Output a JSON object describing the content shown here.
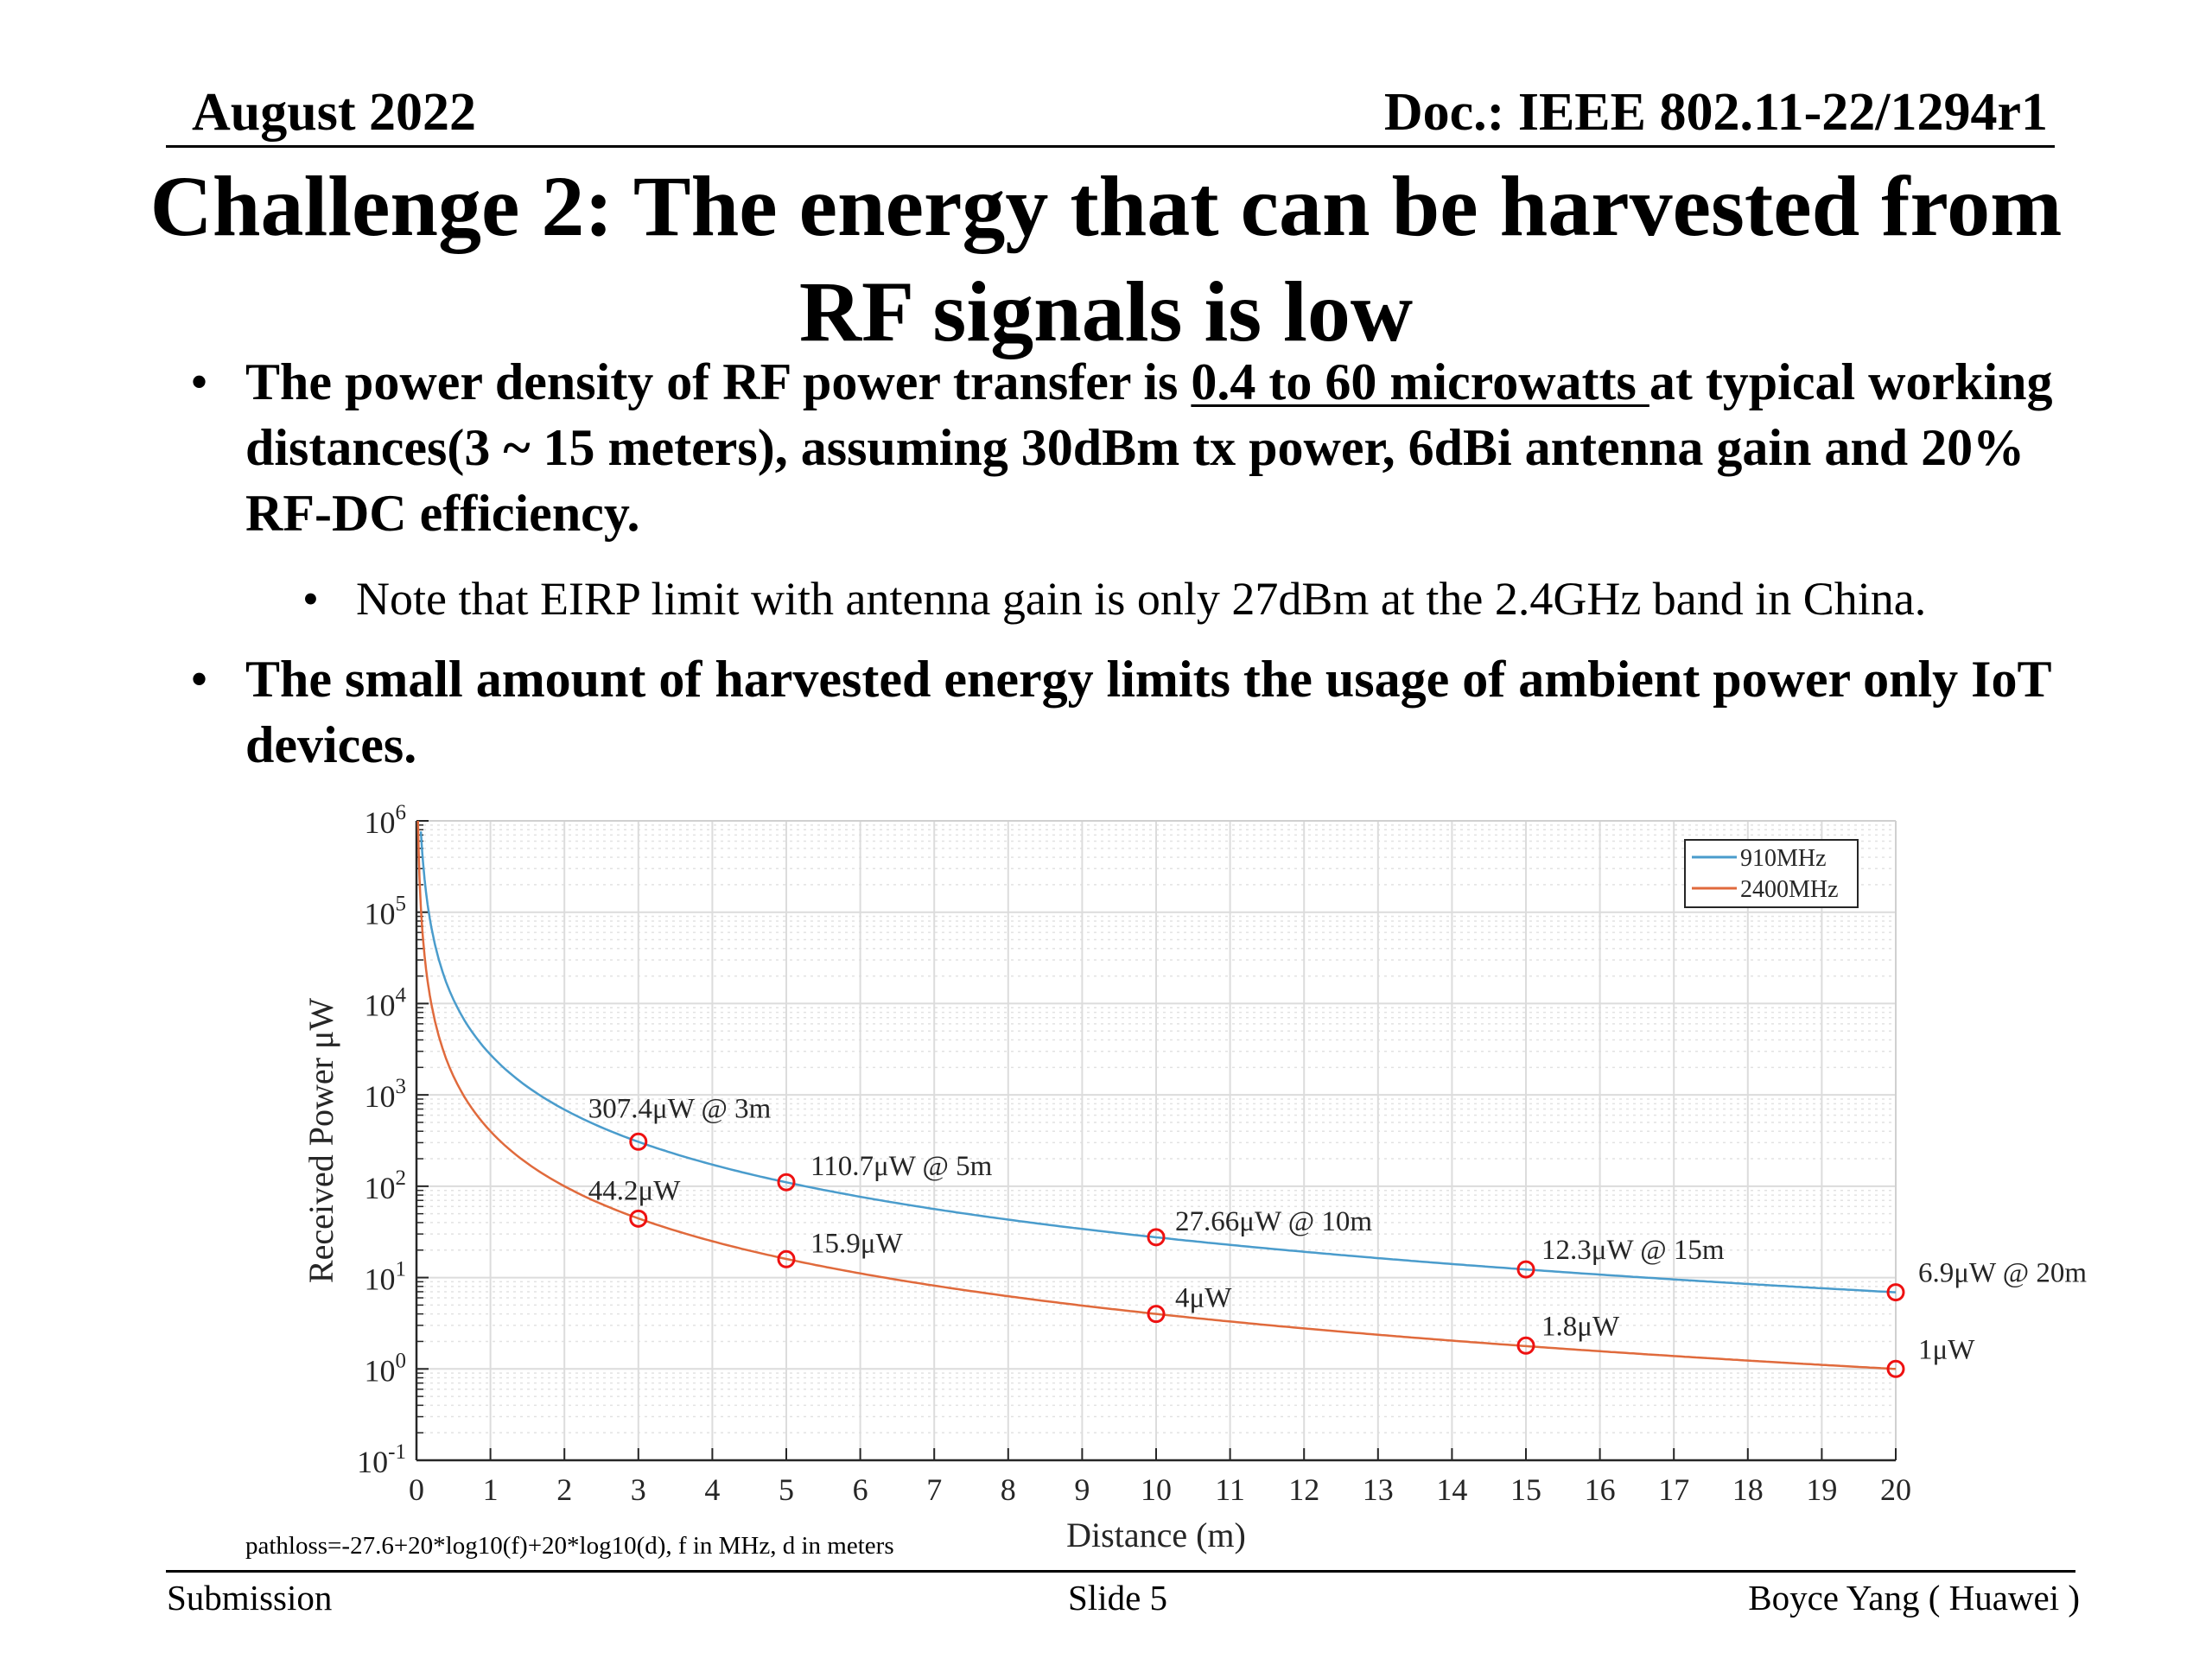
{
  "header": {
    "date": "August 2022",
    "doc": "Doc.: IEEE 802.11-22/1294r1"
  },
  "slide": {
    "title_line1": "Challenge 2: The energy that can be harvested from",
    "title_line2": "RF signals is low",
    "bullet1": {
      "before": "The power density of RF power transfer is ",
      "highlight": "0.4 to 60 microwatts ",
      "after": "at typical working distances(3 ~ 15 meters), assuming 30dBm tx power, 6dBi antenna gain and 20% RF-DC efficiency."
    },
    "sub_bullet": "Note that EIRP limit with antenna gain is only 27dBm at the 2.4GHz band in China.",
    "bullet2": "The small amount of harvested energy limits the usage of ambient power only IoT devices.",
    "bullet_glyph": "•"
  },
  "chart_data": {
    "type": "line",
    "xlabel": "Distance (m)",
    "ylabel": "Received Power μW",
    "xlim": [
      0,
      20
    ],
    "ylim": [
      0.1,
      1000000
    ],
    "yscale": "log",
    "grid": true,
    "legend": "top-right",
    "x_ticks": [
      "0",
      "1",
      "2",
      "3",
      "4",
      "5",
      "6",
      "7",
      "8",
      "9",
      "10",
      "11",
      "12",
      "13",
      "14",
      "15",
      "16",
      "17",
      "18",
      "19",
      "20"
    ],
    "y_ticks": [
      {
        "base": "10",
        "exp": "-1"
      },
      {
        "base": "10",
        "exp": "0"
      },
      {
        "base": "10",
        "exp": "1"
      },
      {
        "base": "10",
        "exp": "2"
      },
      {
        "base": "10",
        "exp": "3"
      },
      {
        "base": "10",
        "exp": "4"
      },
      {
        "base": "10",
        "exp": "5"
      },
      {
        "base": "10",
        "exp": "6"
      }
    ],
    "series": [
      {
        "name": "910MHz",
        "color": "#4a9ccc",
        "model": "inverse-square",
        "points": [
          {
            "x": 3,
            "y": 307.4,
            "label": "307.4μW @ 3m"
          },
          {
            "x": 5,
            "y": 110.7,
            "label": "110.7μW @ 5m"
          },
          {
            "x": 10,
            "y": 27.66,
            "label": "27.66μW @ 10m"
          },
          {
            "x": 15,
            "y": 12.3,
            "label": "12.3μW @ 15m"
          },
          {
            "x": 20,
            "y": 6.9,
            "label": "6.9μW @ 20m"
          }
        ]
      },
      {
        "name": "2400MHz",
        "color": "#e06a3c",
        "model": "inverse-square",
        "points": [
          {
            "x": 3,
            "y": 44.2,
            "label": "44.2μW"
          },
          {
            "x": 5,
            "y": 15.9,
            "label": "15.9μW"
          },
          {
            "x": 10,
            "y": 4,
            "label": "4μW"
          },
          {
            "x": 15,
            "y": 1.8,
            "label": "1.8μW"
          },
          {
            "x": 20,
            "y": 1,
            "label": "1μW"
          }
        ]
      }
    ],
    "marker_color": "#ee1111"
  },
  "footnote": "pathloss=-27.6+20*log10(f)+20*log10(d), f in MHz, d in meters",
  "footer": {
    "left": "Submission",
    "center": "Slide 5",
    "right": "Boyce Yang ( Huawei )"
  }
}
